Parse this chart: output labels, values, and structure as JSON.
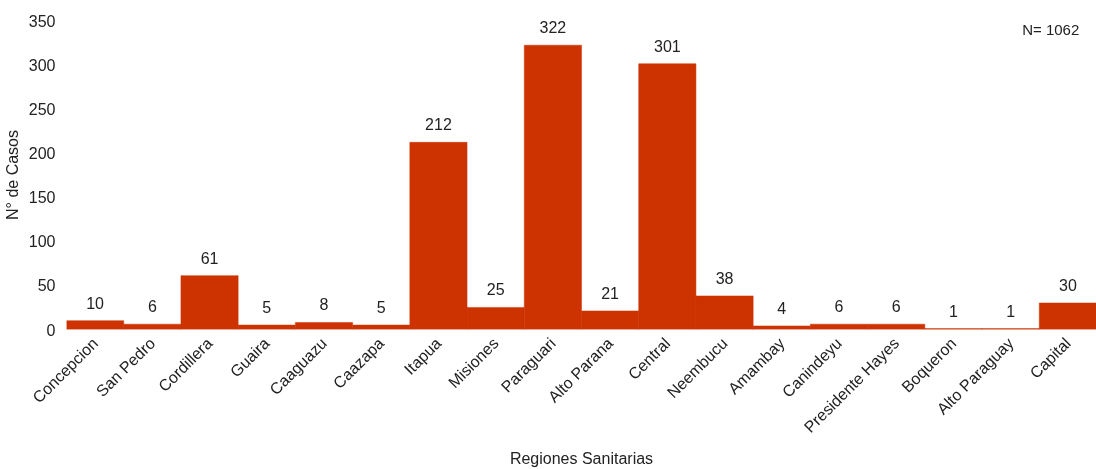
{
  "chart_data": {
    "type": "bar",
    "xlabel": "Regiones Sanitarias",
    "ylabel": "N° de Casos",
    "categories": [
      "Concepcion",
      "San Pedro",
      "Cordillera",
      "Guaira",
      "Caaguazu",
      "Caazapa",
      "Itapua",
      "Misiones",
      "Paraguari",
      "Alto Parana",
      "Central",
      "Neembucu",
      "Amambay",
      "Canindeyu",
      "Presidente Hayes",
      "Boqueron",
      "Alto Paraguay",
      "Capital"
    ],
    "values": [
      10,
      6,
      61,
      5,
      8,
      5,
      212,
      25,
      322,
      21,
      301,
      38,
      4,
      6,
      6,
      1,
      1,
      30
    ],
    "color": "#cc3300",
    "ylim": [
      0,
      350
    ],
    "yticks": [
      0,
      50,
      100,
      150,
      200,
      250,
      300,
      350
    ],
    "data_labels": true,
    "grid": false,
    "annotations": [
      "N= 1062"
    ]
  }
}
